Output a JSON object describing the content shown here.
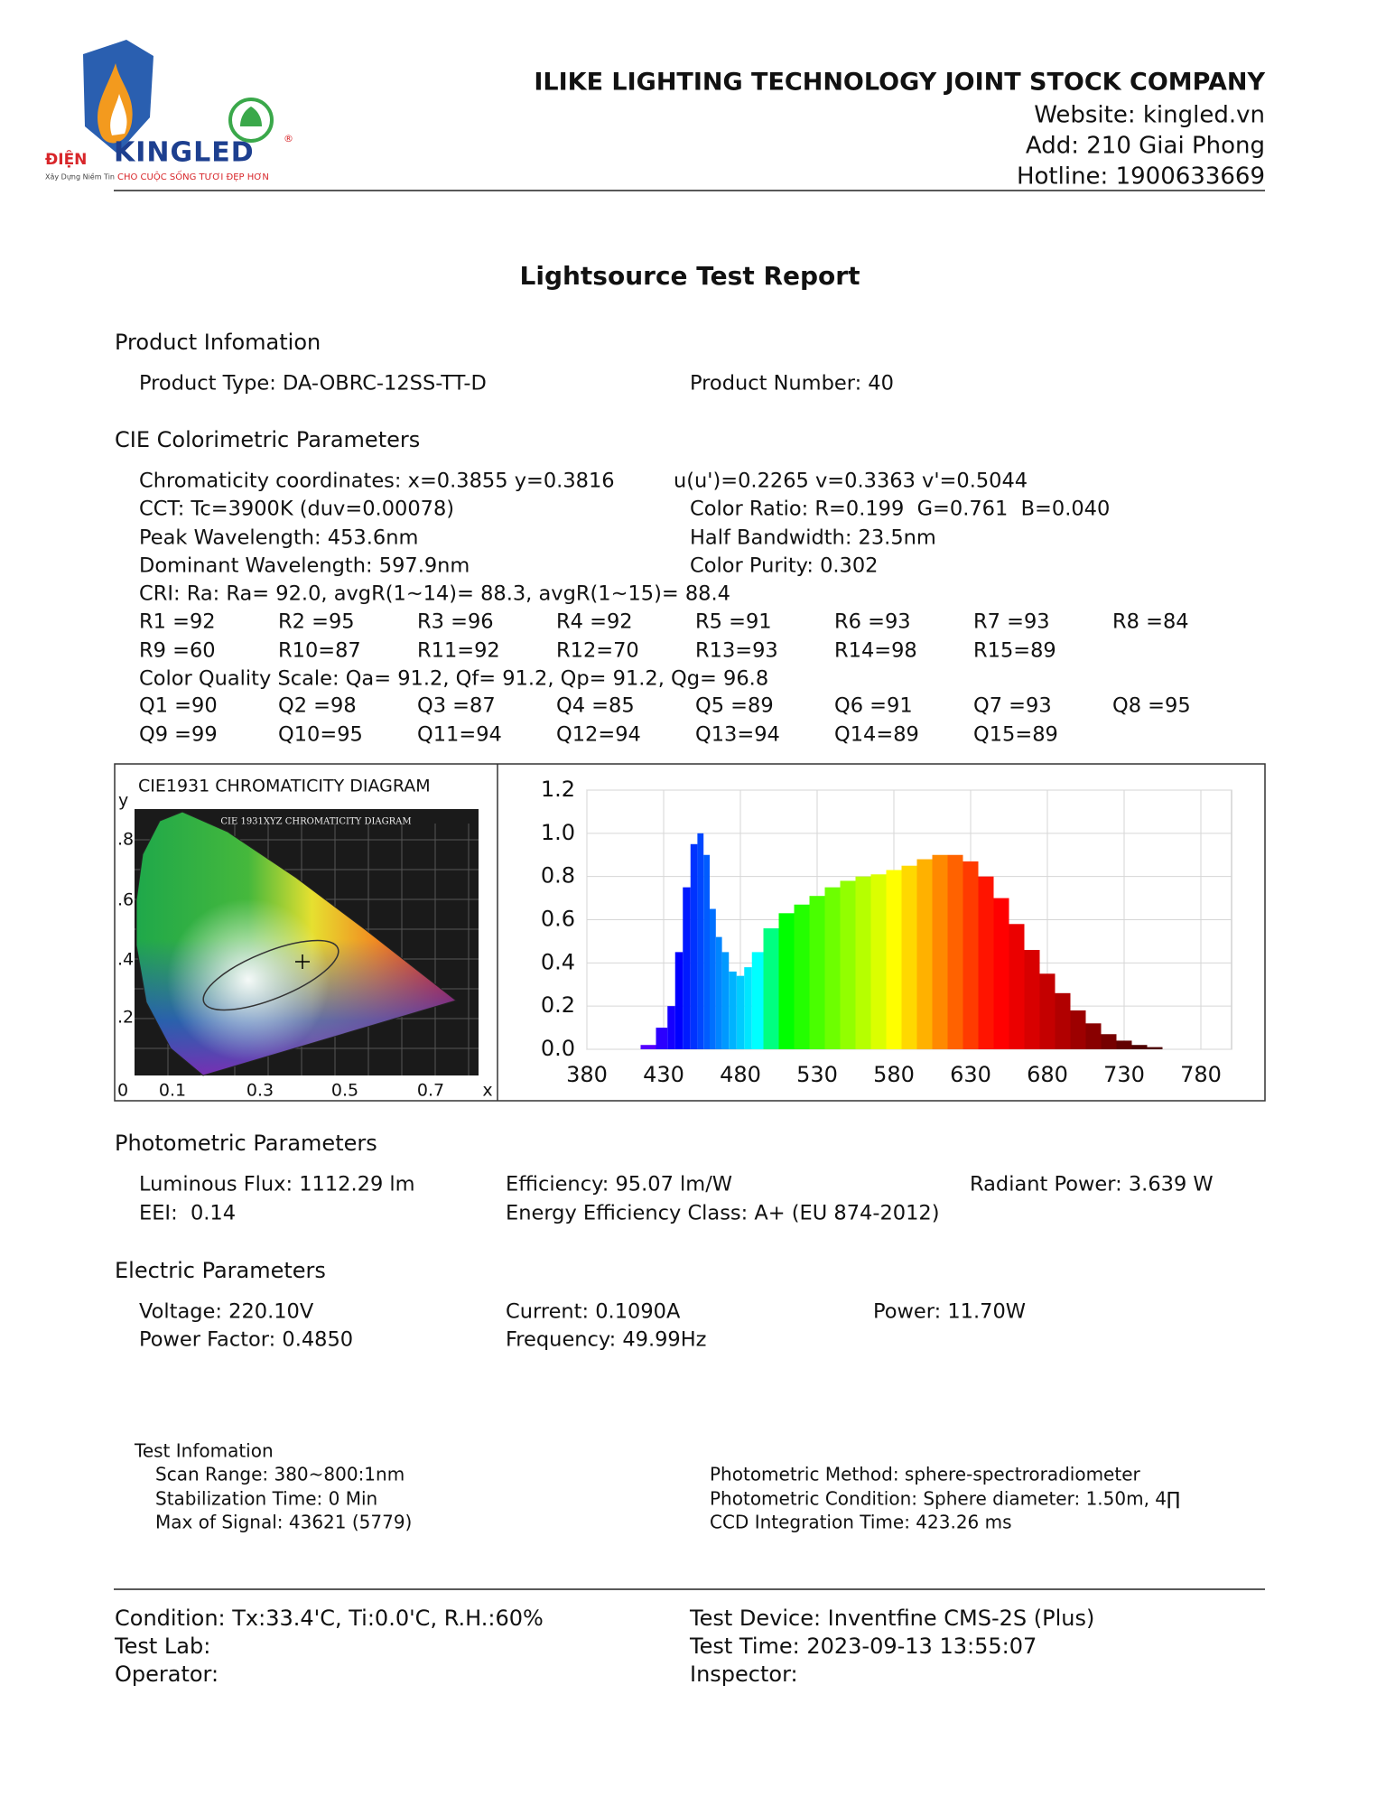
{
  "header": {
    "company": "ILIKE LIGHTING TECHNOLOGY JOINT STOCK COMPANY",
    "website": "Website: kingled.vn",
    "address": "Add: 210 Giai Phong",
    "hotline": "Hotline: 1900633669"
  },
  "logo": {
    "brand_left": "ĐIỆN",
    "brand_right": "KINGLED",
    "registered": "®",
    "slogan_left": "Xây Dựng Niềm Tin",
    "slogan_right": "CHO CUỘC SỐNG TƯƠI ĐẸP HƠN"
  },
  "title": "Lightsource Test Report",
  "product": {
    "heading": "Product Infomation",
    "type": "Product Type: DA-OBRC-12SS-TT-D",
    "number": "Product Number: 40"
  },
  "cie": {
    "heading": "CIE Colorimetric Parameters",
    "chromaticity": "Chromaticity coordinates: x=0.3855 y=0.3816",
    "uv": "u(u')=0.2265 v=0.3363 v'=0.5044",
    "cct": "CCT: Tc=3900K (duv=0.00078)",
    "color_ratio": "Color Ratio: R=0.199  G=0.761  B=0.040",
    "peak": "Peak Wavelength: 453.6nm",
    "half_bandwidth": "Half Bandwidth: 23.5nm",
    "dominant": "Dominant Wavelength: 597.9nm",
    "purity": "Color Purity: 0.302",
    "cri": "CRI: Ra: Ra= 92.0, avgR(1~14)= 88.3, avgR(1~15)= 88.4",
    "r_values": [
      "R1 =92",
      "R2 =95",
      "R3 =96",
      "R4 =92",
      "R5 =91",
      "R6 =93",
      "R7 =93",
      "R8 =84",
      "R9 =60",
      "R10=87",
      "R11=92",
      "R12=70",
      "R13=93",
      "R14=98",
      "R15=89"
    ],
    "cqs": "Color Quality Scale: Qa= 91.2, Qf= 91.2, Qp= 91.2, Qg= 96.8",
    "q_values": [
      "Q1 =90",
      "Q2 =98",
      "Q3 =87",
      "Q4 =85",
      "Q5 =89",
      "Q6 =91",
      "Q7 =93",
      "Q8 =95",
      "Q9 =99",
      "Q10=95",
      "Q11=94",
      "Q12=94",
      "Q13=94",
      "Q14=89",
      "Q15=89"
    ]
  },
  "cie_diagram": {
    "title": "CIE1931 CHROMATICITY DIAGRAM",
    "inner_title": "CIE 1931XYZ CHROMATICITY DIAGRAM",
    "y_label": "y",
    "y_ticks": [
      ".8",
      ".6",
      ".4",
      ".2"
    ],
    "x_label": "x",
    "x_ticks": [
      "0",
      "0.1",
      "0.3",
      "0.5",
      "0.7"
    ]
  },
  "chart_data": {
    "type": "spectrum",
    "x": [
      380,
      390,
      400,
      410,
      420,
      430,
      435,
      440,
      445,
      450,
      454,
      458,
      462,
      466,
      470,
      475,
      480,
      485,
      490,
      500,
      510,
      520,
      530,
      540,
      550,
      560,
      570,
      580,
      590,
      600,
      610,
      620,
      630,
      640,
      650,
      660,
      670,
      680,
      690,
      700,
      710,
      720,
      730,
      740,
      750,
      760,
      770,
      780
    ],
    "values": [
      0,
      0,
      0,
      0,
      0.02,
      0.1,
      0.2,
      0.45,
      0.75,
      0.95,
      1.0,
      0.9,
      0.65,
      0.52,
      0.45,
      0.36,
      0.34,
      0.38,
      0.45,
      0.56,
      0.63,
      0.67,
      0.71,
      0.75,
      0.78,
      0.8,
      0.81,
      0.83,
      0.85,
      0.88,
      0.9,
      0.9,
      0.87,
      0.8,
      0.7,
      0.58,
      0.46,
      0.35,
      0.26,
      0.18,
      0.12,
      0.07,
      0.04,
      0.02,
      0.01,
      0,
      0,
      0
    ],
    "xlim": [
      380,
      800
    ],
    "xticks": [
      380,
      430,
      480,
      530,
      580,
      630,
      680,
      730,
      780
    ],
    "ylim": [
      0,
      1.2
    ],
    "yticks": [
      {
        "value": 0,
        "label": "0.0"
      },
      0.2,
      0.4,
      0.6,
      0.8,
      {
        "value": 1,
        "label": "1.0"
      },
      1.2
    ],
    "grid": true
  },
  "photometric": {
    "heading": "Photometric Parameters",
    "flux": "Luminous Flux: 1112.29 lm",
    "efficiency": "Efficiency: 95.07 lm/W",
    "radiant_power": "Radiant Power: 3.639 W",
    "eei": "EEI:  0.14",
    "energy_class": "Energy Efficiency Class: A+ (EU 874-2012)"
  },
  "electric": {
    "heading": "Electric Parameters",
    "voltage": "Voltage: 220.10V",
    "current": "Current: 0.1090A",
    "power": "Power: 11.70W",
    "power_factor": "Power Factor: 0.4850",
    "frequency": "Frequency: 49.99Hz"
  },
  "test_info": {
    "heading": "Test Infomation",
    "scan_range": "Scan Range: 380~800:1nm",
    "stabilization": "Stabilization Time: 0 Min",
    "max_signal": "Max of Signal: 43621 (5779)",
    "method": "Photometric Method: sphere-spectroradiometer",
    "condition": "Photometric Condition: Sphere diameter: 1.50m, 4∏",
    "ccd": "CCD Integration Time: 423.26 ms"
  },
  "footer": {
    "condition": "Condition: Tx:33.4'C, Ti:0.0'C, R.H.:60%",
    "device": "Test Device: Inventfine CMS-2S (Plus)",
    "lab": "Test Lab:",
    "time": "Test Time: 2023-09-13 13:55:07",
    "operator": "Operator:",
    "inspector": "Inspector:"
  }
}
